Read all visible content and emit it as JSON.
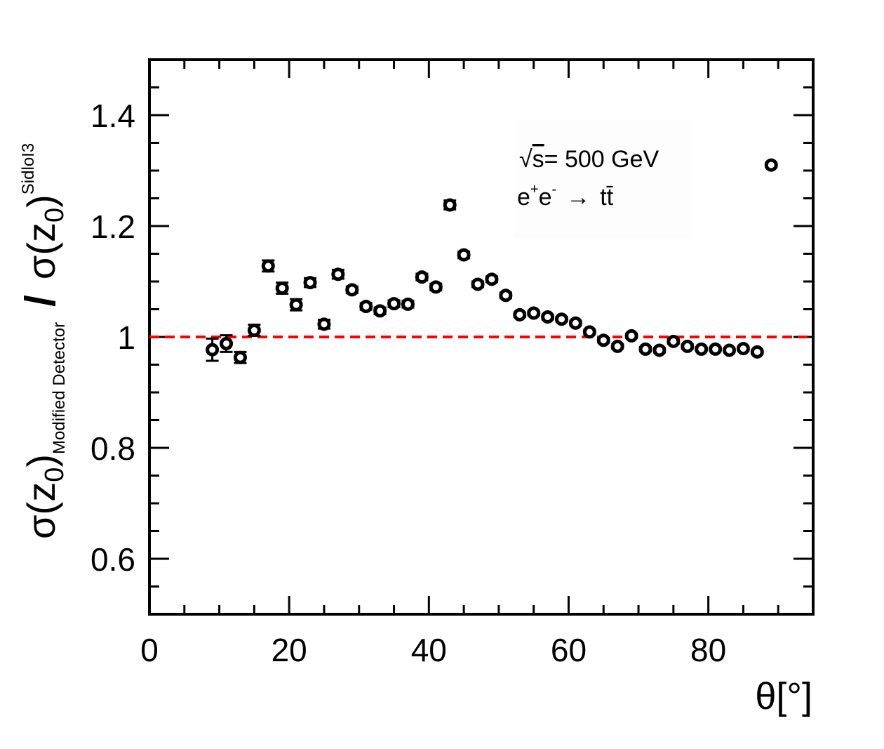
{
  "chart_data": {
    "type": "scatter",
    "xlim": [
      0,
      95
    ],
    "ylim": [
      0.5,
      1.5
    ],
    "xticks": [
      0,
      20,
      40,
      60,
      80
    ],
    "xtick_labels": [
      "0",
      "20",
      "40",
      "60",
      "80"
    ],
    "yticks": [
      0.6,
      0.8,
      1.0,
      1.2,
      1.4
    ],
    "ytick_labels": [
      "0.6",
      "0.8",
      "1",
      "1.2",
      "1.4"
    ],
    "xlabel": "θ[°]",
    "ylabel": {
      "numerator_base": "σ(z",
      "numerator_sub": "0",
      "numerator_close": ")",
      "numerator_label": "Modified Detector",
      "slash": "/",
      "denominator_base": "σ(z",
      "denominator_sub": "0",
      "denominator_close": ")",
      "denominator_label": "SidloI3"
    },
    "reference_line": {
      "y": 1.0,
      "color": "#ff0000",
      "style": "dashed"
    },
    "annotations": {
      "energy_root": "√",
      "energy_s": "s",
      "energy_text": "= 500 GeV",
      "process_e1": "e",
      "process_sup1": "+",
      "process_e2": "e",
      "process_sup2": "-",
      "process_arrow": "→",
      "process_final": "tt̄"
    },
    "marker_color": "#000000",
    "grid": false,
    "points": [
      {
        "x": 9,
        "y": 0.977,
        "err": 0.02
      },
      {
        "x": 11,
        "y": 0.988,
        "err": 0.015
      },
      {
        "x": 13,
        "y": 0.963,
        "err": 0.01
      },
      {
        "x": 15,
        "y": 1.012,
        "err": 0.01
      },
      {
        "x": 17,
        "y": 1.128,
        "err": 0.01
      },
      {
        "x": 19,
        "y": 1.088,
        "err": 0.01
      },
      {
        "x": 21,
        "y": 1.058,
        "err": 0.01
      },
      {
        "x": 23,
        "y": 1.098,
        "err": 0.008
      },
      {
        "x": 25,
        "y": 1.023,
        "err": 0.008
      },
      {
        "x": 27,
        "y": 1.113,
        "err": 0.008
      },
      {
        "x": 29,
        "y": 1.085,
        "err": 0.006
      },
      {
        "x": 31,
        "y": 1.055,
        "err": 0.006
      },
      {
        "x": 33,
        "y": 1.047,
        "err": 0.006
      },
      {
        "x": 35,
        "y": 1.06,
        "err": 0.006
      },
      {
        "x": 37,
        "y": 1.059,
        "err": 0.006
      },
      {
        "x": 39,
        "y": 1.108,
        "err": 0.006
      },
      {
        "x": 41,
        "y": 1.09,
        "err": 0.006
      },
      {
        "x": 43,
        "y": 1.238,
        "err": 0.008
      },
      {
        "x": 45,
        "y": 1.148,
        "err": 0.006
      },
      {
        "x": 47,
        "y": 1.095,
        "err": 0.005
      },
      {
        "x": 49,
        "y": 1.104,
        "err": 0.005
      },
      {
        "x": 51,
        "y": 1.075,
        "err": 0.005
      },
      {
        "x": 53,
        "y": 1.04,
        "err": 0.004
      },
      {
        "x": 55,
        "y": 1.043,
        "err": 0.004
      },
      {
        "x": 57,
        "y": 1.036,
        "err": 0.004
      },
      {
        "x": 59,
        "y": 1.032,
        "err": 0.004
      },
      {
        "x": 61,
        "y": 1.025,
        "err": 0.004
      },
      {
        "x": 63,
        "y": 1.009,
        "err": 0.004
      },
      {
        "x": 65,
        "y": 0.994,
        "err": 0.004
      },
      {
        "x": 67,
        "y": 0.983,
        "err": 0.004
      },
      {
        "x": 69,
        "y": 1.002,
        "err": 0.004
      },
      {
        "x": 71,
        "y": 0.978,
        "err": 0.004
      },
      {
        "x": 73,
        "y": 0.976,
        "err": 0.004
      },
      {
        "x": 75,
        "y": 0.992,
        "err": 0.004
      },
      {
        "x": 77,
        "y": 0.983,
        "err": 0.004
      },
      {
        "x": 79,
        "y": 0.978,
        "err": 0.003
      },
      {
        "x": 81,
        "y": 0.978,
        "err": 0.003
      },
      {
        "x": 83,
        "y": 0.976,
        "err": 0.003
      },
      {
        "x": 85,
        "y": 0.979,
        "err": 0.003
      },
      {
        "x": 87,
        "y": 0.973,
        "err": 0.003
      },
      {
        "x": 89,
        "y": 1.31,
        "err": 0.004
      }
    ]
  }
}
